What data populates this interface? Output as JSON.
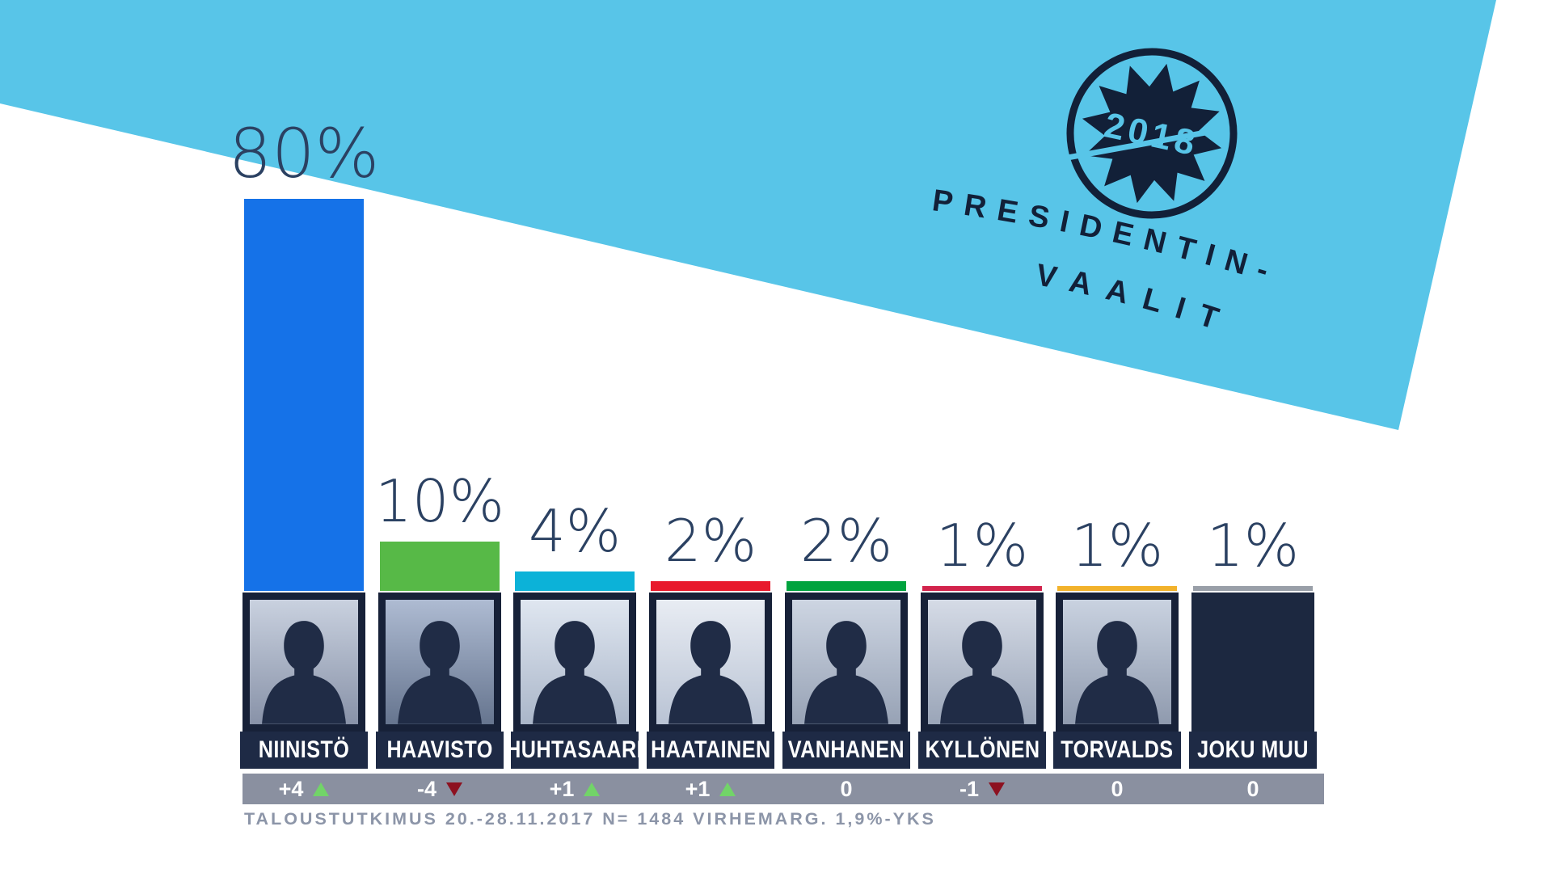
{
  "header": {
    "logo": {
      "year": "2018",
      "line1": "PRESIDENTIN-",
      "line2": "VAALIT"
    }
  },
  "chart_data": {
    "type": "bar",
    "title": "",
    "xlabel": "",
    "ylabel": "",
    "unit": "%",
    "ylim": [
      0,
      100
    ],
    "grid": false,
    "legend": "none",
    "categories": [
      "NIINISTÖ",
      "HAAVISTO",
      "HUHTASAARI",
      "HAATAINEN",
      "VANHANEN",
      "KYLLÖNEN",
      "TORVALDS",
      "JOKU MUU"
    ],
    "values": [
      80,
      10,
      4,
      2,
      2,
      1,
      1,
      1
    ],
    "value_labels": [
      "80%",
      "10%",
      "4%",
      "2%",
      "2%",
      "1%",
      "1%",
      "1%"
    ],
    "bar_colors": [
      "#1572E8",
      "#57B947",
      "#0CB2D8",
      "#E8192C",
      "#00A33E",
      "#D2234C",
      "#F2B22B",
      "#999FA8"
    ],
    "changes": [
      {
        "label": "+4",
        "direction": "up"
      },
      {
        "label": "-4",
        "direction": "down"
      },
      {
        "label": "+1",
        "direction": "up"
      },
      {
        "label": "+1",
        "direction": "up"
      },
      {
        "label": "0",
        "direction": "none"
      },
      {
        "label": "-1",
        "direction": "down"
      },
      {
        "label": "0",
        "direction": "none"
      },
      {
        "label": "0",
        "direction": "none"
      }
    ],
    "has_photo": [
      true,
      true,
      true,
      true,
      true,
      true,
      true,
      false
    ]
  },
  "footer": {
    "source": "TALOUSTUTKIMUS 20.-28.11.2017 N= 1484 VIRHEMARG. 1,9%-YKS"
  },
  "colors": {
    "banner": "#58C5E8",
    "navy": "#122038",
    "value_label": "#2B4162",
    "plate": "#1E2A45",
    "frame": "#172138",
    "empty_box": "#1C2840",
    "strip": "#8A90A0",
    "caption": "#8C95A8",
    "trend_up": "#72D468",
    "trend_down": "#8D1120",
    "silhouette": "#202C46",
    "photo_tints": [
      [
        "#C9D1DF",
        "#8892A8"
      ],
      [
        "#AEBBD2",
        "#66758F"
      ],
      [
        "#DFE6F0",
        "#AAB6C9"
      ],
      [
        "#E8ECF3",
        "#B9C3D4"
      ],
      [
        "#CDD5E2",
        "#97A2B5"
      ],
      [
        "#D5DBE6",
        "#9AA5B8"
      ],
      [
        "#C9D2E0",
        "#8F9AAE"
      ],
      [
        "#1C2840",
        "#1C2840"
      ]
    ]
  }
}
